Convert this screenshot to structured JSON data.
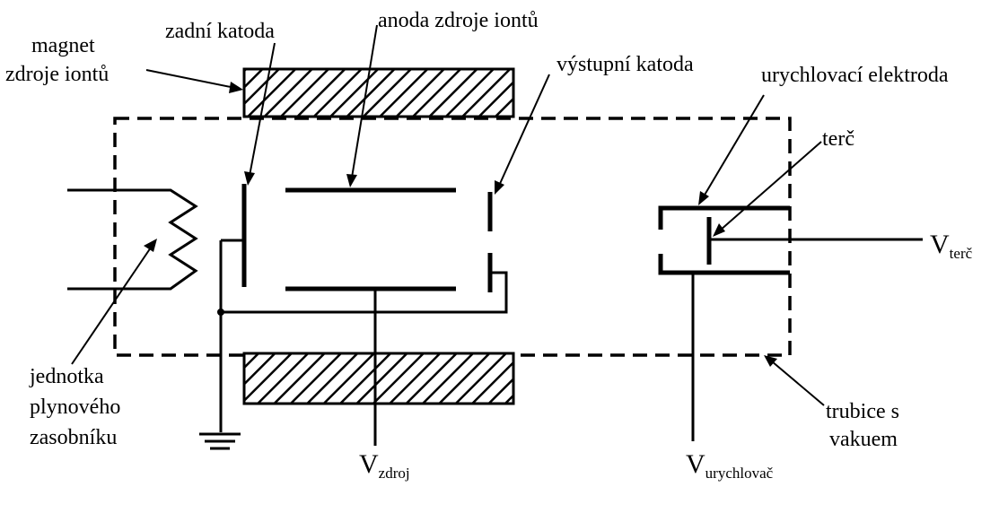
{
  "labels": {
    "magnet_line1": "magnet",
    "magnet_line2": "zdroje iontů",
    "rear_cathode": "zadní katoda",
    "source_anode": "anoda zdroje iontů",
    "exit_cathode": "výstupní katoda",
    "accel_electrode": "urychlovací elektroda",
    "target": "terč",
    "gas_unit_line1": "jednotka",
    "gas_unit_line2": "plynového",
    "gas_unit_line3": "zasobníku",
    "tube_line1": "trubice s",
    "tube_line2": "vakuem"
  },
  "voltages": {
    "target_main": "V",
    "target_sub": "terč",
    "source_main": "V",
    "source_sub": "zdroj",
    "accel_main": "V",
    "accel_sub": "urychlovač"
  }
}
